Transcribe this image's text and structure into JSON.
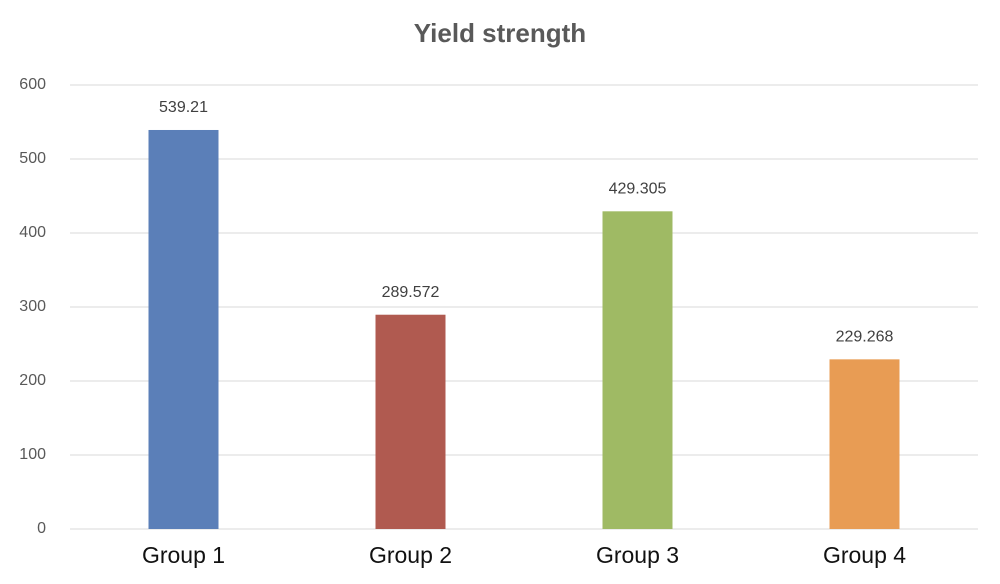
{
  "chart_data": {
    "type": "bar",
    "title": "Yield strength",
    "categories": [
      "Group 1",
      "Group 2",
      "Group 3",
      "Group 4"
    ],
    "values": [
      539.21,
      289.572,
      429.305,
      229.268
    ],
    "colors": [
      "#5b7fb8",
      "#b05a50",
      "#9fba64",
      "#e89c54"
    ],
    "ylim": [
      0,
      600
    ],
    "yticks": [
      0,
      100,
      200,
      300,
      400,
      500,
      600
    ],
    "grid": true
  }
}
